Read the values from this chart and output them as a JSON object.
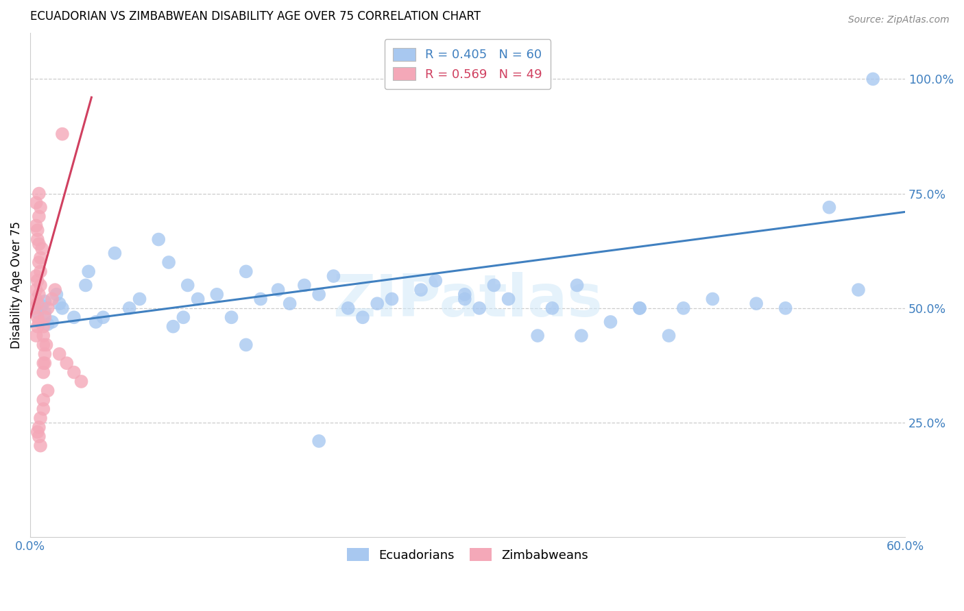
{
  "title": "ECUADORIAN VS ZIMBABWEAN DISABILITY AGE OVER 75 CORRELATION CHART",
  "source": "Source: ZipAtlas.com",
  "ylabel": "Disability Age Over 75",
  "xlim": [
    0.0,
    0.6
  ],
  "ylim": [
    0.0,
    1.1
  ],
  "ytick_vals": [
    0.25,
    0.5,
    0.75,
    1.0
  ],
  "ytick_labels": [
    "25.0%",
    "50.0%",
    "75.0%",
    "100.0%"
  ],
  "xtick_vals": [
    0.0,
    0.1,
    0.2,
    0.3,
    0.4,
    0.5,
    0.6
  ],
  "xtick_labels": [
    "0.0%",
    "",
    "",
    "",
    "",
    "",
    "60.0%"
  ],
  "legend_blue_R": "R = 0.405",
  "legend_blue_N": "N = 60",
  "legend_pink_R": "R = 0.569",
  "legend_pink_N": "N = 49",
  "blue_color": "#A8C8F0",
  "pink_color": "#F4A8B8",
  "blue_line_color": "#4080C0",
  "pink_line_color": "#D04060",
  "tick_color": "#4080C0",
  "watermark": "ZIPatlas",
  "blue_line_x0": 0.0,
  "blue_line_y0": 0.46,
  "blue_line_x1": 0.6,
  "blue_line_y1": 0.71,
  "pink_line_x0": 0.0,
  "pink_line_y0": 0.48,
  "pink_line_x1": 0.042,
  "pink_line_y1": 0.96,
  "blue_scatter_x": [
    0.005,
    0.008,
    0.01,
    0.012,
    0.01,
    0.015,
    0.02,
    0.018,
    0.022,
    0.03,
    0.038,
    0.045,
    0.04,
    0.058,
    0.05,
    0.075,
    0.088,
    0.068,
    0.095,
    0.105,
    0.115,
    0.108,
    0.128,
    0.148,
    0.138,
    0.158,
    0.17,
    0.178,
    0.198,
    0.188,
    0.208,
    0.218,
    0.238,
    0.248,
    0.228,
    0.268,
    0.278,
    0.298,
    0.318,
    0.308,
    0.328,
    0.348,
    0.358,
    0.378,
    0.398,
    0.375,
    0.418,
    0.438,
    0.448,
    0.468,
    0.498,
    0.518,
    0.548,
    0.568,
    0.418,
    0.298,
    0.198,
    0.148,
    0.098,
    0.578
  ],
  "blue_scatter_y": [
    0.49,
    0.505,
    0.515,
    0.465,
    0.49,
    0.47,
    0.51,
    0.53,
    0.5,
    0.48,
    0.55,
    0.47,
    0.58,
    0.62,
    0.48,
    0.52,
    0.65,
    0.5,
    0.6,
    0.48,
    0.52,
    0.55,
    0.53,
    0.58,
    0.48,
    0.52,
    0.54,
    0.51,
    0.53,
    0.55,
    0.57,
    0.5,
    0.51,
    0.52,
    0.48,
    0.54,
    0.56,
    0.53,
    0.55,
    0.5,
    0.52,
    0.44,
    0.5,
    0.44,
    0.47,
    0.55,
    0.5,
    0.44,
    0.5,
    0.52,
    0.51,
    0.5,
    0.72,
    0.54,
    0.5,
    0.52,
    0.21,
    0.42,
    0.46,
    1.0
  ],
  "pink_scatter_x": [
    0.003,
    0.004,
    0.005,
    0.004,
    0.005,
    0.006,
    0.006,
    0.007,
    0.004,
    0.005,
    0.004,
    0.007,
    0.006,
    0.005,
    0.008,
    0.005,
    0.004,
    0.006,
    0.007,
    0.006,
    0.004,
    0.005,
    0.006,
    0.007,
    0.009,
    0.01,
    0.009,
    0.01,
    0.009,
    0.011,
    0.009,
    0.009,
    0.01,
    0.012,
    0.015,
    0.017,
    0.02,
    0.025,
    0.03,
    0.035,
    0.012,
    0.009,
    0.009,
    0.007,
    0.006,
    0.006,
    0.007,
    0.005,
    0.022
  ],
  "pink_scatter_y": [
    0.5,
    0.52,
    0.48,
    0.54,
    0.51,
    0.47,
    0.53,
    0.55,
    0.57,
    0.46,
    0.44,
    0.58,
    0.6,
    0.56,
    0.63,
    0.65,
    0.68,
    0.7,
    0.72,
    0.75,
    0.73,
    0.67,
    0.64,
    0.61,
    0.42,
    0.38,
    0.36,
    0.4,
    0.38,
    0.42,
    0.44,
    0.46,
    0.48,
    0.5,
    0.52,
    0.54,
    0.4,
    0.38,
    0.36,
    0.34,
    0.32,
    0.3,
    0.28,
    0.26,
    0.24,
    0.22,
    0.2,
    0.23,
    0.88
  ]
}
